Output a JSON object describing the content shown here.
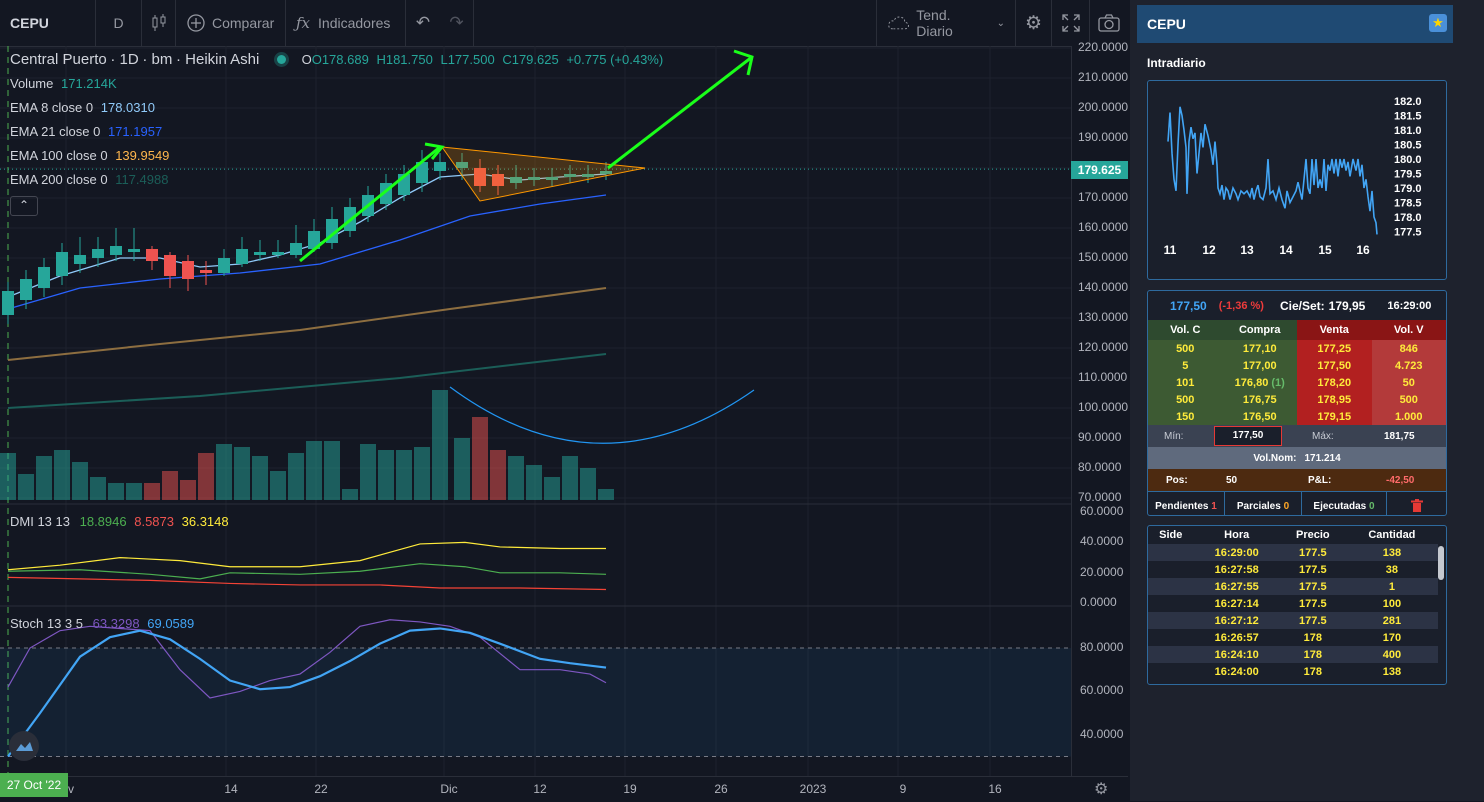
{
  "toolbar": {
    "symbol": "CEPU",
    "interval": "D",
    "compare_label": "Comparar",
    "indicators_label": "Indicadores",
    "template_label": "Tend. Diario"
  },
  "legend": {
    "name": "Central Puerto",
    "interval": "1D",
    "exchange": "bm",
    "style": "Heikin Ashi",
    "open": "O178.689",
    "high": "H181.750",
    "low": "L177.500",
    "close": "C179.625",
    "change": "+0.775 (+0.43%)",
    "volume_label": "Volume",
    "volume_value": "171.214K",
    "ema8_label": "EMA 8 close 0",
    "ema8_value": "178.0310",
    "ema21_label": "EMA 21 close 0",
    "ema21_value": "171.1957",
    "ema100_label": "EMA 100 close 0",
    "ema100_value": "139.9549",
    "ema200_label": "EMA 200 close 0",
    "ema200_value": "117.4988",
    "dmi_label": "DMI 13 13",
    "dmi_plus": "18.8946",
    "dmi_minus": "8.5873",
    "dmi_adx": "36.3148",
    "stoch_label": "Stoch 13 3 5",
    "stoch_k": "63.3298",
    "stoch_d": "69.0589"
  },
  "price_axis": [
    "220.0000",
    "210.0000",
    "200.0000",
    "190.0000",
    "180.0000",
    "170.0000",
    "160.0000",
    "150.0000",
    "140.0000",
    "130.0000",
    "120.0000",
    "110.0000",
    "100.0000",
    "90.0000",
    "80.0000",
    "70.0000"
  ],
  "last_price": "179.625",
  "dmi_axis": [
    "60.0000",
    "40.0000",
    "20.0000",
    "0.0000"
  ],
  "stoch_axis": [
    "80.0000",
    "60.0000",
    "40.0000"
  ],
  "time_axis": [
    "v",
    "14",
    "22",
    "Dic",
    "12",
    "19",
    "26",
    "2023",
    "9",
    "16"
  ],
  "date_badge": "27 Oct '22",
  "colors": {
    "up": "#26a69a",
    "down": "#ef5350",
    "accent": "#2962ff",
    "green_arrow": "#1aff1a",
    "triangle": "#ff9800"
  },
  "panel": {
    "title": "CEPU",
    "intraday_label": "Intradiario",
    "mini_y": [
      "182.0",
      "181.5",
      "181.0",
      "180.5",
      "180.0",
      "179.5",
      "179.0",
      "178.5",
      "178.0",
      "177.5"
    ],
    "mini_x": [
      "11",
      "12",
      "13",
      "14",
      "15",
      "16"
    ],
    "quote": {
      "price": "177,50",
      "change": "(-1,36 %)",
      "close_label": "Cie/Set:",
      "close_value": "179,95",
      "time": "16:29:00"
    },
    "book_headers": [
      "Vol. C",
      "Compra",
      "Venta",
      "Vol. V"
    ],
    "book_rows": [
      [
        "500",
        "177,10",
        "177,25",
        "846"
      ],
      [
        "5",
        "177,00",
        "177,50",
        "4.723"
      ],
      [
        "101",
        "176,80",
        "178,20",
        "50"
      ],
      [
        "500",
        "176,75",
        "178,95",
        "500"
      ],
      [
        "150",
        "176,50",
        "179,15",
        "1.000"
      ]
    ],
    "book_note": "(1)",
    "min_label": "Mín:",
    "min_value": "177,50",
    "max_label": "Máx:",
    "max_value": "181,75",
    "volnom_label": "Vol.Nom:",
    "volnom_value": "171.214",
    "pos_label": "Pos:",
    "pos_value": "50",
    "pl_label": "P&L:",
    "pl_value": "-42,50",
    "tabs": [
      {
        "label": "Pendientes",
        "count": "1"
      },
      {
        "label": "Parciales",
        "count": "0"
      },
      {
        "label": "Ejecutadas",
        "count": "0"
      }
    ],
    "history_headers": [
      "Side",
      "Hora",
      "Precio",
      "Cantidad"
    ],
    "history_rows": [
      [
        "",
        "16:29:00",
        "177.5",
        "138"
      ],
      [
        "",
        "16:27:58",
        "177.5",
        "38"
      ],
      [
        "",
        "16:27:55",
        "177.5",
        "1"
      ],
      [
        "",
        "16:27:14",
        "177.5",
        "100"
      ],
      [
        "",
        "16:27:12",
        "177.5",
        "281"
      ],
      [
        "",
        "16:26:57",
        "178",
        "170"
      ],
      [
        "",
        "16:24:10",
        "178",
        "400"
      ],
      [
        "",
        "16:24:00",
        "178",
        "138"
      ]
    ]
  }
}
